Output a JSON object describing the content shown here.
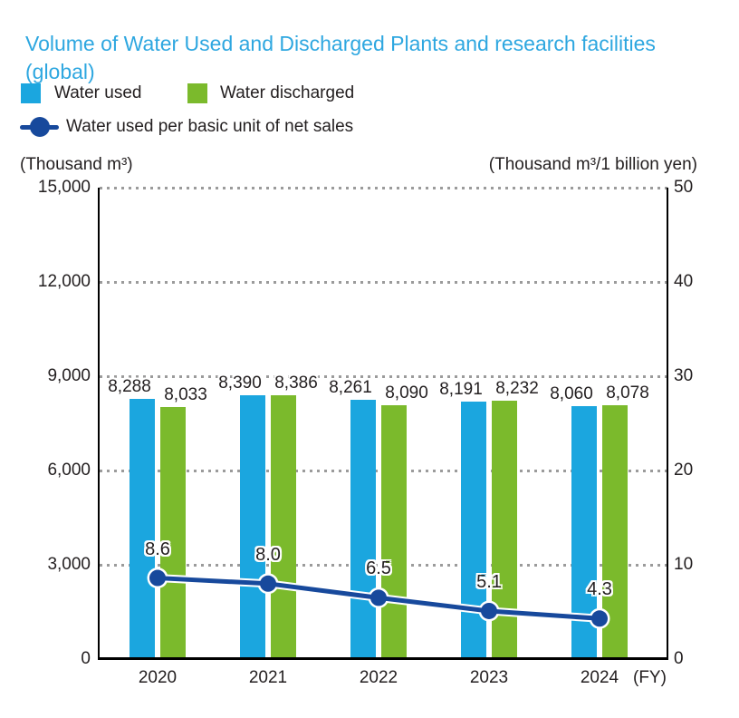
{
  "title": "Volume of Water Used and Discharged Plants and research facilities (global)",
  "colors": {
    "title": "#2EA7E0",
    "water_used": "#1BA6DF",
    "water_discharged": "#7BBA2C",
    "line": "#17499C",
    "text": "#231F20",
    "grid_dots": "#9B9B9B",
    "axis": "#000000"
  },
  "chart_data": {
    "type": "bar",
    "categories": [
      "2020",
      "2021",
      "2022",
      "2023",
      "2024"
    ],
    "series": [
      {
        "name": "Water used",
        "color": "#1BA6DF",
        "values": [
          8288,
          8390,
          8261,
          8191,
          8060
        ]
      },
      {
        "name": "Water discharged",
        "color": "#7BBA2C",
        "values": [
          8033,
          8386,
          8090,
          8232,
          8078
        ]
      }
    ],
    "line_series": {
      "name": "Water used per basic unit of net sales",
      "color": "#17499C",
      "axis": "right",
      "values": [
        8.6,
        8.0,
        6.5,
        5.1,
        4.3
      ]
    },
    "left_axis": {
      "unit": "(Thousand m³)",
      "min": 0,
      "max": 15000,
      "tick_step": 3000,
      "tick_labels": [
        "15,000",
        "12,000",
        "9,000",
        "6,000",
        "3,000",
        "0"
      ]
    },
    "right_axis": {
      "unit": "(Thousand m³/1 billion yen)",
      "min": 0,
      "max": 50,
      "tick_step": 10,
      "tick_labels": [
        "50",
        "40",
        "30",
        "20",
        "10",
        "0"
      ]
    },
    "x_axis_suffix": "(FY)",
    "grid": "dotted-horizontal",
    "legend_position": "top-left"
  }
}
